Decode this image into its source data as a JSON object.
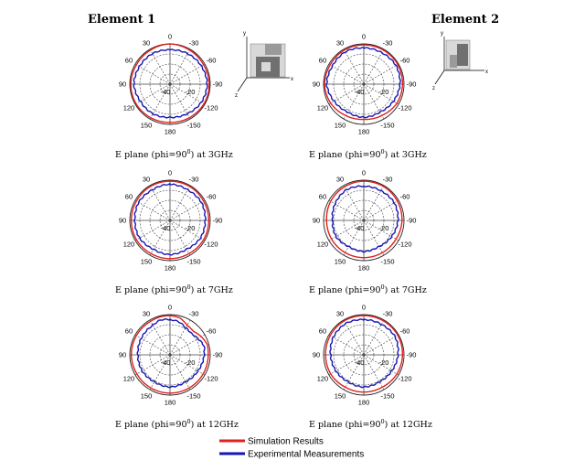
{
  "figure": {
    "col_titles": [
      "Element 1",
      "Element 2"
    ],
    "legend": [
      {
        "label": "Simulation Results",
        "color": "#e0201c"
      },
      {
        "label": "Experimental Measurements",
        "color": "#1616b4"
      }
    ],
    "inset_axis_labels": [
      "y",
      "x",
      "z"
    ]
  },
  "chart_data": [
    {
      "type": "polar-line",
      "element": "Element 1",
      "caption_pre": "E plane (phi=90",
      "caption_sup": "0",
      "caption_post": ") at 3GHz",
      "angle_labels": [
        "0",
        "-30",
        "-60",
        "-90",
        "-120",
        "-150",
        "180",
        "150",
        "120",
        "90",
        "60",
        "30"
      ],
      "radial_labels": [
        "-40",
        "-20"
      ],
      "rlim": [
        -40,
        0
      ],
      "grid": true,
      "series": [
        {
          "name": "Simulation Results",
          "color": "#e0201c",
          "theta": [
            0,
            30,
            60,
            90,
            120,
            150,
            180,
            210,
            240,
            270,
            300,
            330
          ],
          "r_dB": [
            0,
            -1,
            -1.5,
            -1,
            -1,
            -1.5,
            -2,
            -1.5,
            -1,
            -1,
            -1.5,
            -1
          ]
        },
        {
          "name": "Experimental Measurements",
          "color": "#1616b4",
          "theta": [
            0,
            30,
            60,
            90,
            120,
            150,
            180,
            210,
            240,
            270,
            300,
            330
          ],
          "r_dB": [
            -6,
            -5,
            -5,
            -4,
            -6,
            -6,
            -7,
            -6,
            -4,
            -3,
            -4,
            -5
          ]
        }
      ]
    },
    {
      "type": "polar-line",
      "element": "Element 2",
      "caption_pre": "E plane (phi=90",
      "caption_sup": "0",
      "caption_post": ") at 3GHz",
      "angle_labels": [
        "0",
        "-30",
        "-60",
        "-90",
        "-120",
        "-150",
        "180",
        "150",
        "120",
        "90",
        "60",
        "30"
      ],
      "radial_labels": [
        "-40",
        "-20"
      ],
      "rlim": [
        -40,
        0
      ],
      "grid": true,
      "series": [
        {
          "name": "Simulation Results",
          "color": "#e0201c",
          "theta": [
            0,
            30,
            60,
            90,
            120,
            150,
            180,
            210,
            240,
            270,
            300,
            330
          ],
          "r_dB": [
            -1,
            -1,
            -1.5,
            -1,
            -2,
            -4,
            -5,
            -4,
            -2,
            -1.5,
            -1,
            -1
          ]
        },
        {
          "name": "Experimental Measurements",
          "color": "#1616b4",
          "theta": [
            0,
            30,
            60,
            90,
            120,
            150,
            180,
            210,
            240,
            270,
            300,
            330
          ],
          "r_dB": [
            -4,
            -3,
            -4,
            -3,
            -6,
            -8,
            -7,
            -8,
            -6,
            -4,
            -3,
            -4
          ]
        }
      ]
    },
    {
      "type": "polar-line",
      "element": "Element 1",
      "caption_pre": "E plane (phi=90",
      "caption_sup": "0",
      "caption_post": ") at 7GHz",
      "angle_labels": [
        "0",
        "-30",
        "-60",
        "-90",
        "-120",
        "-150",
        "180",
        "150",
        "120",
        "90",
        "60",
        "30"
      ],
      "radial_labels": [
        "-40",
        "-20"
      ],
      "rlim": [
        -40,
        0
      ],
      "grid": true,
      "series": [
        {
          "name": "Simulation Results",
          "color": "#e0201c",
          "theta": [
            0,
            30,
            60,
            90,
            120,
            150,
            180,
            210,
            240,
            270,
            300,
            330
          ],
          "r_dB": [
            -1,
            -1,
            -1.5,
            -1.5,
            -1.5,
            -2,
            -2,
            -2,
            -1.5,
            -1.5,
            -1.5,
            -1
          ]
        },
        {
          "name": "Experimental Measurements",
          "color": "#1616b4",
          "theta": [
            0,
            30,
            60,
            90,
            120,
            150,
            180,
            210,
            240,
            270,
            300,
            330
          ],
          "r_dB": [
            -4,
            -5,
            -4,
            -5,
            -5,
            -7,
            -6,
            -7,
            -5,
            -5,
            -4,
            -5
          ]
        }
      ]
    },
    {
      "type": "polar-line",
      "element": "Element 2",
      "caption_pre": "E plane (phi=90",
      "caption_sup": "0",
      "caption_post": ") at 7GHz",
      "angle_labels": [
        "0",
        "-30",
        "-60",
        "-90",
        "-120",
        "-150",
        "180",
        "150",
        "120",
        "90",
        "60",
        "30"
      ],
      "radial_labels": [
        "-40",
        "-20"
      ],
      "rlim": [
        -40,
        0
      ],
      "grid": true,
      "series": [
        {
          "name": "Simulation Results",
          "color": "#e0201c",
          "theta": [
            0,
            30,
            60,
            90,
            120,
            150,
            180,
            210,
            240,
            270,
            300,
            330
          ],
          "r_dB": [
            -1,
            -1.5,
            -2,
            -3,
            -3,
            -3,
            -3,
            -3,
            -3,
            -2,
            -1.5,
            -1
          ]
        },
        {
          "name": "Experimental Measurements",
          "color": "#1616b4",
          "theta": [
            0,
            30,
            60,
            90,
            120,
            150,
            180,
            210,
            240,
            270,
            300,
            330
          ],
          "r_dB": [
            -6,
            -5,
            -7,
            -9,
            -8,
            -10,
            -9,
            -10,
            -8,
            -6,
            -5,
            -6
          ]
        }
      ]
    },
    {
      "type": "polar-line",
      "element": "Element 1",
      "caption_pre": "E plane (phi=90",
      "caption_sup": "0",
      "caption_post": ") at 12GHz",
      "angle_labels": [
        "0",
        "-30",
        "-60",
        "-90",
        "-120",
        "-150",
        "180",
        "150",
        "120",
        "90",
        "60",
        "30"
      ],
      "radial_labels": [
        "-40",
        "-20"
      ],
      "rlim": [
        -40,
        0
      ],
      "grid": true,
      "series": [
        {
          "name": "Simulation Results",
          "color": "#e0201c",
          "theta": [
            0,
            15,
            30,
            60,
            90,
            120,
            150,
            180,
            210,
            240,
            270,
            285,
            300,
            315,
            330,
            345
          ],
          "r_dB": [
            -1,
            -1,
            -1.5,
            -1.5,
            -1.5,
            -2,
            -2,
            -2,
            -2,
            -2,
            -2,
            -1.5,
            -4,
            -7,
            -6,
            -2
          ]
        },
        {
          "name": "Experimental Measurements",
          "color": "#1616b4",
          "theta": [
            0,
            15,
            30,
            60,
            90,
            120,
            150,
            180,
            210,
            240,
            270,
            285,
            300,
            315,
            330,
            345
          ],
          "r_dB": [
            -5,
            -4,
            -6,
            -7,
            -8,
            -8,
            -9,
            -8,
            -9,
            -8,
            -6,
            -5,
            -8,
            -10,
            -9,
            -6
          ]
        }
      ]
    },
    {
      "type": "polar-line",
      "element": "Element 2",
      "caption_pre": "E plane (phi=90",
      "caption_sup": "0",
      "caption_post": ") at 12GHz",
      "angle_labels": [
        "0",
        "-30",
        "-60",
        "-90",
        "-120",
        "-150",
        "180",
        "150",
        "120",
        "90",
        "60",
        "30"
      ],
      "radial_labels": [
        "-40",
        "-20"
      ],
      "rlim": [
        -40,
        0
      ],
      "grid": true,
      "series": [
        {
          "name": "Simulation Results",
          "color": "#e0201c",
          "theta": [
            0,
            30,
            60,
            90,
            120,
            150,
            180,
            210,
            240,
            270,
            300,
            330
          ],
          "r_dB": [
            -1,
            -1,
            -1.5,
            -2,
            -2,
            -3,
            -3,
            -3,
            -2,
            -1.5,
            -1,
            -1
          ]
        },
        {
          "name": "Experimental Measurements",
          "color": "#1616b4",
          "theta": [
            0,
            30,
            60,
            90,
            120,
            150,
            180,
            210,
            240,
            270,
            300,
            330
          ],
          "r_dB": [
            -5,
            -4,
            -5,
            -7,
            -8,
            -9,
            -8,
            -9,
            -8,
            -6,
            -4,
            -5
          ]
        }
      ]
    }
  ]
}
